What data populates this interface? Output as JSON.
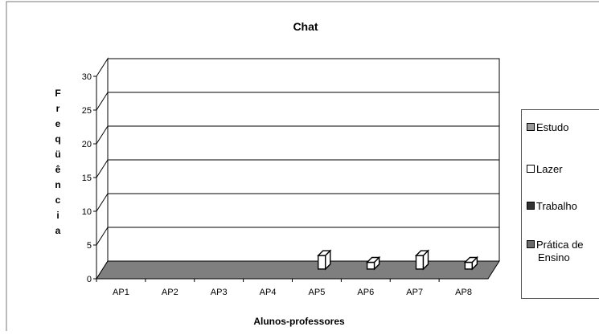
{
  "chart_data": {
    "type": "bar",
    "title": "Chat",
    "xlabel": "Alunos-professores",
    "ylabel": "Freqüência",
    "categories": [
      "AP1",
      "AP2",
      "AP3",
      "AP4",
      "AP5",
      "AP6",
      "AP7",
      "AP8"
    ],
    "y_ticks": [
      "0",
      "5",
      "10",
      "15",
      "20",
      "25",
      "30"
    ],
    "ylim": [
      0,
      30
    ],
    "grid": true,
    "legend_position": "right",
    "series": [
      {
        "name": "Estudo",
        "values": [
          0,
          0,
          0,
          0,
          0,
          0,
          0,
          0
        ],
        "color": "#9a9a9a"
      },
      {
        "name": "Lazer",
        "values": [
          0,
          0,
          0,
          0,
          2,
          1,
          2,
          1
        ],
        "color": "#ffffff"
      },
      {
        "name": "Trabalho",
        "values": [
          0,
          0,
          0,
          0,
          0,
          0,
          0,
          0
        ],
        "color": "#333333"
      },
      {
        "name": "Prática de Ensino",
        "name_lines": [
          "Prática de",
          "Ensino"
        ],
        "values": [
          0,
          0,
          0,
          0,
          0,
          0,
          0,
          0
        ],
        "color": "#6a6a6a"
      }
    ]
  },
  "colors": {
    "floor": "#7f7f7f",
    "frame": "#000000"
  }
}
